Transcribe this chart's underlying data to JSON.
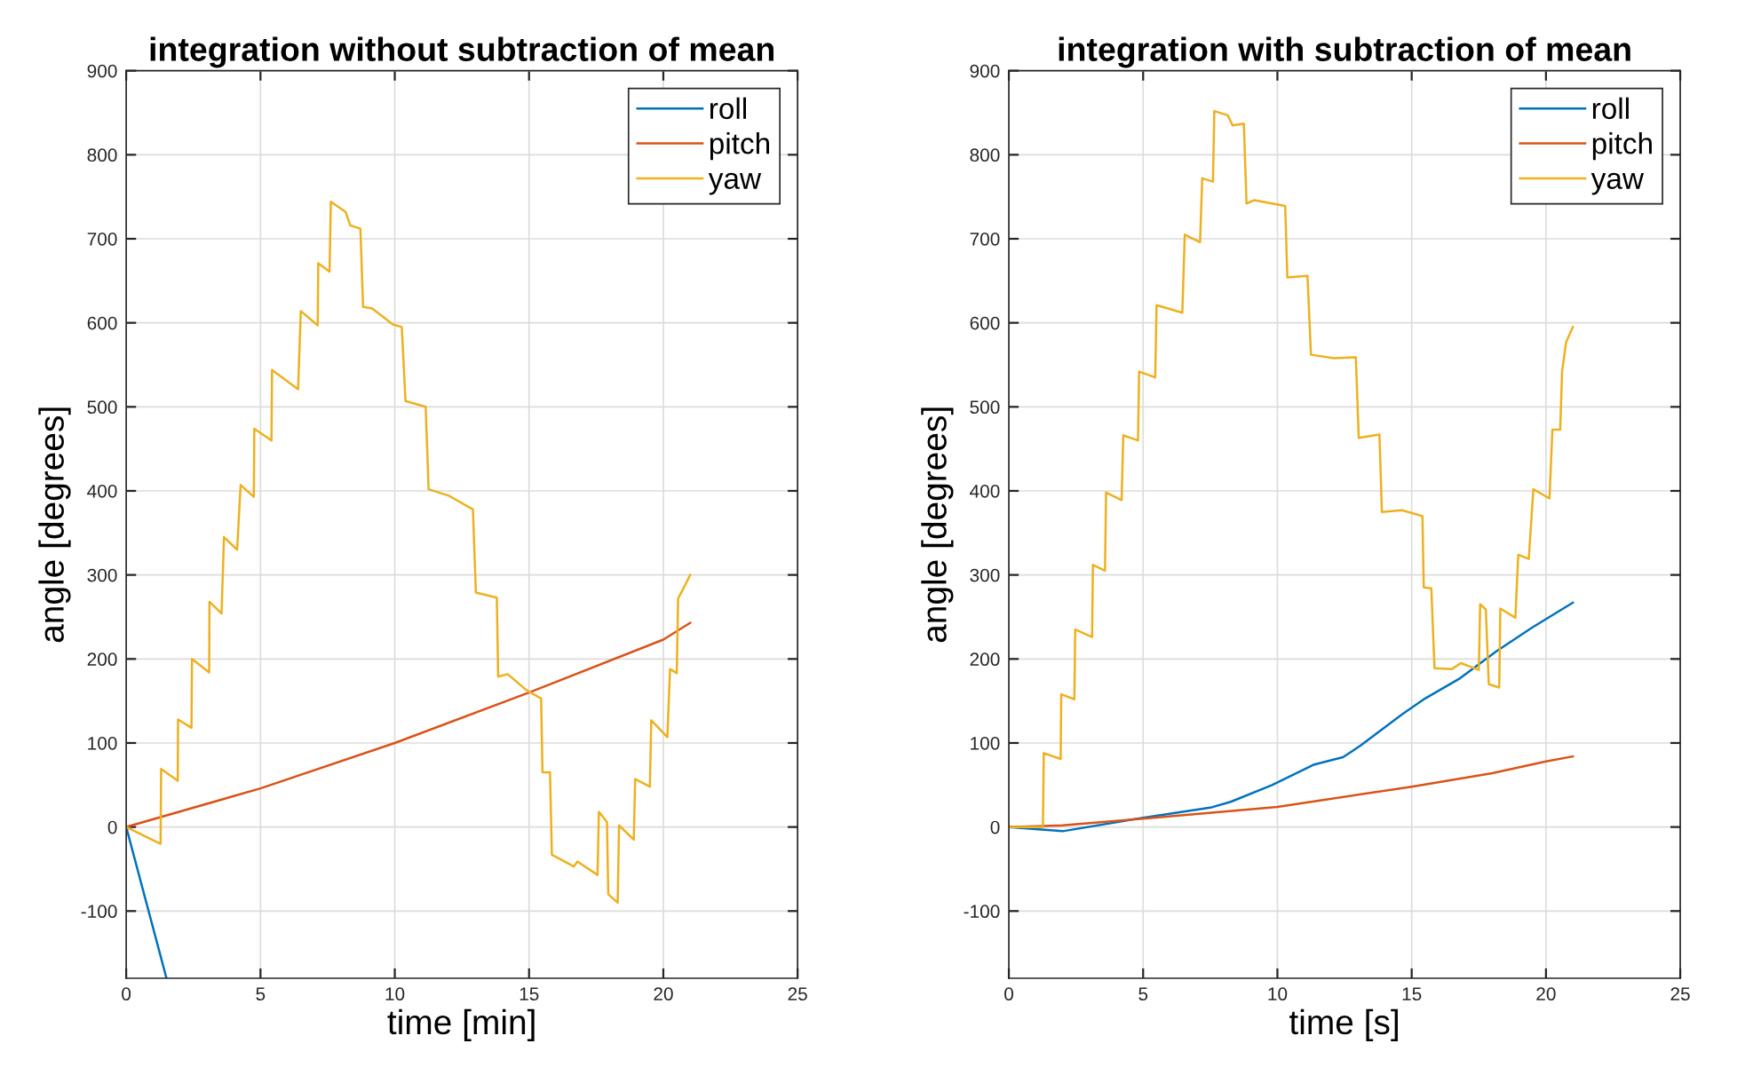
{
  "chart_data": [
    {
      "type": "line",
      "title": "integration without subtraction of mean",
      "xlabel": "time [min]",
      "ylabel": "angle [degrees]",
      "xlim": [
        0,
        25
      ],
      "xticks": [
        0,
        5,
        10,
        15,
        20,
        25
      ],
      "ylim": [
        -180,
        900
      ],
      "yticks": [
        -100,
        0,
        100,
        200,
        300,
        400,
        500,
        600,
        700,
        800,
        900
      ],
      "grid": true,
      "legend": "top right",
      "series": [
        {
          "name": "roll",
          "color": "#0072bd",
          "x": [
            0,
            1.5
          ],
          "values": [
            0,
            -180
          ]
        },
        {
          "name": "pitch",
          "color": "#d95319",
          "x": [
            0,
            5,
            10,
            15,
            20,
            21
          ],
          "values": [
            0,
            46,
            100,
            160,
            223,
            243
          ]
        },
        {
          "name": "yaw",
          "color": "#edb120",
          "x": [
            0,
            1.28,
            1.3,
            1.92,
            1.93,
            2.43,
            2.45,
            3.09,
            3.1,
            3.55,
            3.64,
            4.13,
            4.26,
            4.75,
            4.77,
            5.41,
            5.43,
            6.4,
            6.5,
            7.13,
            7.15,
            7.57,
            7.62,
            8.17,
            8.34,
            8.72,
            8.82,
            9.16,
            9.93,
            10.26,
            10.4,
            11.15,
            11.26,
            12.03,
            12.91,
            13.02,
            13.8,
            13.85,
            14.2,
            14.9,
            15.45,
            15.5,
            15.78,
            15.85,
            16.67,
            16.8,
            17.55,
            17.6,
            17.9,
            17.95,
            18.3,
            18.35,
            18.9,
            18.95,
            19.5,
            19.55,
            20.15,
            20.25,
            20.5,
            20.55,
            20.75,
            21.0
          ],
          "values": [
            0,
            -20,
            69,
            55,
            128,
            118,
            200,
            184,
            268,
            254,
            345,
            330,
            407,
            393,
            474,
            460,
            544,
            521,
            614,
            597,
            671,
            661,
            744,
            732,
            716,
            712,
            619,
            617,
            598,
            595,
            507,
            500,
            402,
            394,
            378,
            279,
            273,
            179,
            182,
            163,
            153,
            65,
            65,
            -33,
            -47,
            -41,
            -57,
            18,
            6,
            -80,
            -90,
            2,
            -15,
            57,
            48,
            127,
            107,
            188,
            183,
            272,
            284,
            300
          ]
        }
      ]
    },
    {
      "type": "line",
      "title": "integration with subtraction of mean",
      "xlabel": "time [s]",
      "ylabel": "angle [degrees]",
      "xlim": [
        0,
        25
      ],
      "xticks": [
        0,
        5,
        10,
        15,
        20,
        25
      ],
      "ylim": [
        -180,
        900
      ],
      "yticks": [
        -100,
        0,
        100,
        200,
        300,
        400,
        500,
        600,
        700,
        800,
        900
      ],
      "grid": true,
      "legend": "top right",
      "series": [
        {
          "name": "roll",
          "color": "#0072bd",
          "x": [
            0,
            2,
            5,
            7.5,
            8.26,
            9.8,
            11.34,
            12.44,
            13.1,
            14.64,
            15.5,
            16.8,
            18.15,
            19.47,
            21.0
          ],
          "values": [
            0,
            -5,
            11,
            23,
            30,
            50,
            74,
            83,
            97,
            134,
            153,
            177,
            209,
            237,
            267
          ]
        },
        {
          "name": "pitch",
          "color": "#d95319",
          "x": [
            0,
            2,
            5,
            10,
            15,
            18,
            20,
            21
          ],
          "values": [
            0,
            2,
            10,
            24,
            48,
            64,
            78,
            84
          ]
        },
        {
          "name": "yaw",
          "color": "#edb120",
          "x": [
            0,
            1.27,
            1.3,
            1.93,
            1.95,
            2.44,
            2.47,
            3.1,
            3.13,
            3.58,
            3.62,
            4.2,
            4.26,
            4.81,
            4.85,
            5.45,
            5.5,
            6.46,
            6.55,
            7.12,
            7.2,
            7.6,
            7.65,
            8.15,
            8.33,
            8.75,
            8.85,
            9.14,
            9.8,
            10.29,
            10.37,
            11.12,
            11.25,
            12.1,
            12.92,
            13.03,
            13.8,
            13.89,
            14.64,
            15.4,
            15.45,
            15.73,
            15.85,
            16.5,
            16.83,
            17.5,
            17.55,
            17.76,
            17.87,
            18.26,
            18.3,
            18.86,
            18.97,
            19.36,
            19.53,
            20.13,
            20.24,
            20.53,
            20.6,
            20.75,
            21.0
          ],
          "values": [
            0,
            0,
            88,
            81,
            158,
            152,
            235,
            226,
            312,
            305,
            398,
            389,
            466,
            460,
            542,
            535,
            621,
            612,
            705,
            696,
            772,
            768,
            852,
            847,
            835,
            837,
            742,
            746,
            742,
            739,
            654,
            656,
            562,
            558,
            559,
            463,
            467,
            375,
            377,
            370,
            285,
            284,
            189,
            188,
            195,
            187,
            265,
            259,
            170,
            166,
            260,
            249,
            324,
            319,
            402,
            391,
            473,
            473,
            542,
            577,
            595
          ]
        }
      ]
    }
  ]
}
